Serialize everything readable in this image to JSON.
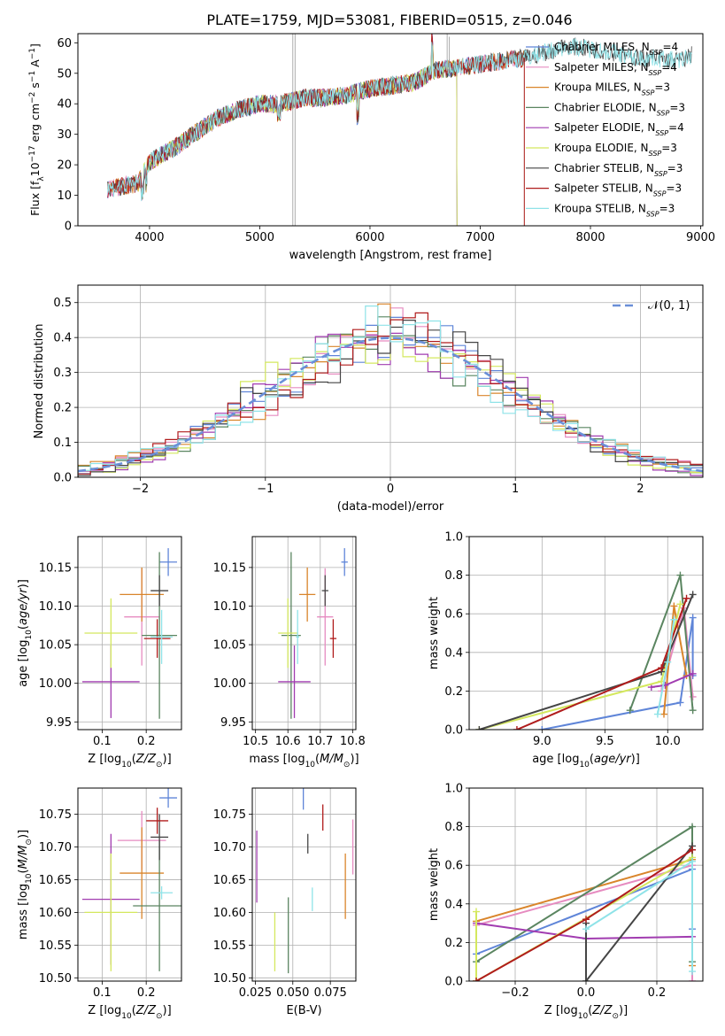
{
  "figure": {
    "suptitle": "PLATE=1759, MJD=53081, FIBERID=0515, z=0.046"
  },
  "series_styles": [
    {
      "name": "Chabrier MILES",
      "nssp": "4",
      "color": "#5f85d8"
    },
    {
      "name": "Salpeter MILES",
      "nssp": "4",
      "color": "#e68bc0"
    },
    {
      "name": "Kroupa MILES",
      "nssp": "3",
      "color": "#d9852b"
    },
    {
      "name": "Chabrier ELODIE",
      "nssp": "3",
      "color": "#5a8560"
    },
    {
      "name": "Salpeter ELODIE",
      "nssp": "4",
      "color": "#a13cb0"
    },
    {
      "name": "Kroupa ELODIE",
      "nssp": "3",
      "color": "#d4e85e"
    },
    {
      "name": "Chabrier STELIB",
      "nssp": "3",
      "color": "#454545"
    },
    {
      "name": "Salpeter STELIB",
      "nssp": "3",
      "color": "#b01c1c"
    },
    {
      "name": "Kroupa STELIB",
      "nssp": "3",
      "color": "#8fe3e8"
    }
  ],
  "chart_data": [
    {
      "id": "spectrum",
      "type": "line",
      "title": "PLATE=1759, MJD=53081, FIBERID=0515, z=0.046",
      "xlabel": "wavelength [Angstrom, rest frame]",
      "ylabel": "Flux [f_λ 10^-17 erg cm^-2 s^-1 A^-1]",
      "xlim": [
        3350,
        9020
      ],
      "ylim": [
        0,
        63
      ],
      "xticks": [
        4000,
        5000,
        6000,
        7000,
        8000,
        9000
      ],
      "yticks": [
        0,
        10,
        20,
        30,
        40,
        50,
        60
      ],
      "legend_position": "top-right",
      "continuum_points": [
        [
          3620,
          12
        ],
        [
          3900,
          14
        ],
        [
          4000,
          21
        ],
        [
          4200,
          25
        ],
        [
          4400,
          30
        ],
        [
          4600,
          35
        ],
        [
          4800,
          38
        ],
        [
          5000,
          40
        ],
        [
          5200,
          40
        ],
        [
          5400,
          42
        ],
        [
          5600,
          42
        ],
        [
          5800,
          43
        ],
        [
          6000,
          45
        ],
        [
          6200,
          46
        ],
        [
          6400,
          47
        ],
        [
          6600,
          51
        ],
        [
          6800,
          52
        ],
        [
          7000,
          53
        ],
        [
          7200,
          54
        ],
        [
          7400,
          55
        ],
        [
          7600,
          57
        ],
        [
          7800,
          59
        ],
        [
          8000,
          58
        ],
        [
          8200,
          57
        ],
        [
          8400,
          55
        ],
        [
          8600,
          55
        ],
        [
          8800,
          54
        ],
        [
          8920,
          56
        ]
      ],
      "series_ranges": [
        {
          "name": "Chabrier MILES",
          "x": [
            3620,
            7400
          ]
        },
        {
          "name": "Salpeter MILES",
          "x": [
            3620,
            7400
          ]
        },
        {
          "name": "Kroupa MILES",
          "x": [
            3620,
            7400
          ]
        },
        {
          "name": "Chabrier ELODIE",
          "x": [
            3900,
            6790
          ]
        },
        {
          "name": "Salpeter ELODIE",
          "x": [
            3900,
            6790
          ]
        },
        {
          "name": "Kroupa ELODIE",
          "x": [
            3900,
            6790
          ]
        },
        {
          "name": "Chabrier STELIB",
          "x": [
            3620,
            8920
          ]
        },
        {
          "name": "Salpeter STELIB",
          "x": [
            3620,
            7400
          ]
        },
        {
          "name": "Kroupa STELIB",
          "x": [
            3620,
            8920
          ]
        }
      ]
    },
    {
      "id": "residuals",
      "type": "histogram",
      "xlabel": "(data-model)/error",
      "ylabel": "Normed distribution",
      "xlim": [
        -2.5,
        2.5
      ],
      "ylim": [
        0,
        0.55
      ],
      "xticks": [
        -2,
        -1,
        0,
        1,
        2
      ],
      "xticklabels": [
        "−2",
        "−1",
        "0",
        "1",
        "2"
      ],
      "yticks": [
        0,
        0.1,
        0.2,
        0.3,
        0.4,
        0.5
      ],
      "yticklabels": [
        "0.0",
        "0.1",
        "0.2",
        "0.3",
        "0.4",
        "0.5"
      ],
      "bin_width": 0.1,
      "legend_label": "𝒩(0, 1)",
      "legend_position": "top-right",
      "reference_curve": "normal(0,1)",
      "bin_heights": [
        0.46,
        0.45,
        0.4,
        0.47,
        0.33,
        0.4,
        0.46,
        0.42,
        0.37,
        0.45,
        0.49,
        0.35,
        0.33,
        0.29
      ]
    },
    {
      "id": "age-vs-Z",
      "type": "errorbar",
      "xlabel": "Z [log10(Z/Z⊙)]",
      "ylabel": "age [log10(age/yr)]",
      "xlim": [
        0.045,
        0.28
      ],
      "ylim": [
        9.94,
        10.19
      ],
      "xticks": [
        0.1,
        0.2
      ],
      "xticklabels": [
        "0.1",
        "0.2"
      ],
      "yticks": [
        9.95,
        10.0,
        10.05,
        10.1,
        10.15
      ],
      "yticklabels": [
        "9.95",
        "10.00",
        "10.05",
        "10.10",
        "10.15"
      ],
      "points": [
        {
          "series": "Chabrier MILES",
          "x": 0.25,
          "y": 10.157,
          "xerr": 0.02,
          "yerr": 0.018
        },
        {
          "series": "Salpeter MILES",
          "x": 0.19,
          "y": 10.086,
          "xerr": 0.04,
          "yerr": 0.063
        },
        {
          "series": "Kroupa MILES",
          "x": 0.19,
          "y": 10.115,
          "xerr": 0.05,
          "yerr": 0.035
        },
        {
          "series": "Chabrier ELODIE",
          "x": 0.23,
          "y": 10.062,
          "xerr": 0.04,
          "yerr": 0.108
        },
        {
          "series": "Salpeter ELODIE",
          "x": 0.12,
          "y": 10.002,
          "xerr": 0.065,
          "yerr": 0.047
        },
        {
          "series": "Kroupa ELODIE",
          "x": 0.12,
          "y": 10.065,
          "xerr": 0.06,
          "yerr": 0.045
        },
        {
          "series": "Chabrier STELIB",
          "x": 0.23,
          "y": 10.12,
          "xerr": 0.02,
          "yerr": 0.02
        },
        {
          "series": "Salpeter STELIB",
          "x": 0.225,
          "y": 10.058,
          "xerr": 0.03,
          "yerr": 0.025
        },
        {
          "series": "Kroupa STELIB",
          "x": 0.235,
          "y": 10.06,
          "xerr": 0.025,
          "yerr": 0.035
        }
      ]
    },
    {
      "id": "age-vs-mass",
      "type": "errorbar",
      "xlabel": "mass [log10(M/M⊙)]",
      "ylabel": "",
      "xlim": [
        10.49,
        10.81
      ],
      "ylim": [
        9.94,
        10.19
      ],
      "xticks": [
        10.5,
        10.6,
        10.7,
        10.8
      ],
      "xticklabels": [
        "10.5",
        "10.6",
        "10.7",
        "10.8"
      ],
      "yticks": [
        9.95,
        10.0,
        10.05,
        10.1,
        10.15
      ],
      "yticklabels": [
        "9.95",
        "10.00",
        "10.05",
        "10.10",
        "10.15"
      ],
      "points": [
        {
          "series": "Chabrier MILES",
          "x": 10.775,
          "y": 10.157,
          "xerr": 0.01,
          "yerr": 0.018
        },
        {
          "series": "Salpeter MILES",
          "x": 10.715,
          "y": 10.086,
          "xerr": 0.025,
          "yerr": 0.063
        },
        {
          "series": "Kroupa MILES",
          "x": 10.66,
          "y": 10.115,
          "xerr": 0.025,
          "yerr": 0.035
        },
        {
          "series": "Chabrier ELODIE",
          "x": 10.61,
          "y": 10.062,
          "xerr": 0.03,
          "yerr": 0.108
        },
        {
          "series": "Salpeter ELODIE",
          "x": 10.62,
          "y": 10.002,
          "xerr": 0.05,
          "yerr": 0.047
        },
        {
          "series": "Kroupa ELODIE",
          "x": 10.6,
          "y": 10.065,
          "xerr": 0.03,
          "yerr": 0.045
        },
        {
          "series": "Chabrier STELIB",
          "x": 10.715,
          "y": 10.12,
          "xerr": 0.01,
          "yerr": 0.02
        },
        {
          "series": "Salpeter STELIB",
          "x": 10.74,
          "y": 10.058,
          "xerr": 0.01,
          "yerr": 0.025
        },
        {
          "series": "Kroupa STELIB",
          "x": 10.63,
          "y": 10.06,
          "xerr": 0.005,
          "yerr": 0.035
        }
      ]
    },
    {
      "id": "weight-vs-age",
      "type": "line",
      "xlabel": "age [log10(age/yr)]",
      "ylabel": "mass weight",
      "xlim": [
        8.42,
        10.28
      ],
      "ylim": [
        0,
        1
      ],
      "xticks": [
        9.0,
        9.5,
        10.0
      ],
      "xticklabels": [
        "9.0",
        "9.5",
        "10.0"
      ],
      "yticks": [
        0,
        0.2,
        0.4,
        0.6,
        0.8,
        1.0
      ],
      "yticklabels": [
        "0.0",
        "0.2",
        "0.4",
        "0.6",
        "0.8",
        "1.0"
      ],
      "series": [
        {
          "name": "Chabrier MILES",
          "x": [
            9.0,
            10.1,
            10.2,
            10.2
          ],
          "y": [
            0.0,
            0.14,
            0.58,
            0.28
          ]
        },
        {
          "name": "Salpeter MILES",
          "x": [
            9.95,
            10.13,
            10.2
          ],
          "y": [
            0.2,
            0.63,
            0.17
          ]
        },
        {
          "name": "Kroupa MILES",
          "x": [
            9.97,
            10.05,
            10.15
          ],
          "y": [
            0.08,
            0.64,
            0.28
          ]
        },
        {
          "name": "Chabrier ELODIE",
          "x": [
            9.7,
            10.1,
            10.2
          ],
          "y": [
            0.1,
            0.8,
            0.1
          ]
        },
        {
          "name": "Salpeter ELODIE",
          "x": [
            9.87,
            9.98,
            10.2
          ],
          "y": [
            0.22,
            0.23,
            0.29
          ]
        },
        {
          "name": "Kroupa ELODIE",
          "x": [
            8.5,
            9.95,
            10.1
          ],
          "y": [
            0.0,
            0.25,
            0.65
          ]
        },
        {
          "name": "Chabrier STELIB",
          "x": [
            8.5,
            9.95,
            10.2
          ],
          "y": [
            0.0,
            0.3,
            0.7
          ]
        },
        {
          "name": "Salpeter STELIB",
          "x": [
            8.8,
            9.95,
            10.15
          ],
          "y": [
            0.0,
            0.32,
            0.68
          ]
        },
        {
          "name": "Kroupa STELIB",
          "x": [
            9.92,
            10.0,
            10.05
          ],
          "y": [
            0.08,
            0.35,
            0.57
          ]
        }
      ]
    },
    {
      "id": "mass-vs-Z",
      "type": "errorbar",
      "xlabel": "Z [log10(Z/Z⊙)]",
      "ylabel": "mass [log10(M/M⊙)]",
      "xlim": [
        0.045,
        0.28
      ],
      "ylim": [
        10.495,
        10.79
      ],
      "xticks": [
        0.1,
        0.2
      ],
      "xticklabels": [
        "0.1",
        "0.2"
      ],
      "yticks": [
        10.5,
        10.55,
        10.6,
        10.65,
        10.7,
        10.75
      ],
      "yticklabels": [
        "10.50",
        "10.55",
        "10.60",
        "10.65",
        "10.70",
        "10.75"
      ],
      "points": [
        {
          "series": "Chabrier MILES",
          "x": 0.25,
          "y": 10.775,
          "xerr": 0.02,
          "yerr": 0.015
        },
        {
          "series": "Salpeter MILES",
          "x": 0.19,
          "y": 10.71,
          "xerr": 0.055,
          "yerr": 0.045
        },
        {
          "series": "Kroupa MILES",
          "x": 0.19,
          "y": 10.66,
          "xerr": 0.05,
          "yerr": 0.07
        },
        {
          "series": "Chabrier ELODIE",
          "x": 0.23,
          "y": 10.61,
          "xerr": 0.06,
          "yerr": 0.1
        },
        {
          "series": "Salpeter ELODIE",
          "x": 0.12,
          "y": 10.62,
          "xerr": 0.065,
          "yerr": 0.1
        },
        {
          "series": "Kroupa ELODIE",
          "x": 0.12,
          "y": 10.6,
          "xerr": 0.06,
          "yerr": 0.09
        },
        {
          "series": "Chabrier STELIB",
          "x": 0.23,
          "y": 10.715,
          "xerr": 0.02,
          "yerr": 0.035
        },
        {
          "series": "Salpeter STELIB",
          "x": 0.225,
          "y": 10.74,
          "xerr": 0.025,
          "yerr": 0.02
        },
        {
          "series": "Kroupa STELIB",
          "x": 0.235,
          "y": 10.63,
          "xerr": 0.025,
          "yerr": 0.01
        }
      ]
    },
    {
      "id": "mass-vs-ebv",
      "type": "errorbar",
      "xlabel": "E(B-V)",
      "ylabel": "",
      "xlim": [
        0.023,
        0.092
      ],
      "ylim": [
        10.495,
        10.79
      ],
      "xticks": [
        0.025,
        0.05,
        0.075
      ],
      "xticklabels": [
        "0.025",
        "0.050",
        "0.075"
      ],
      "yticks": [
        10.5,
        10.55,
        10.6,
        10.65,
        10.7,
        10.75
      ],
      "yticklabels": [
        "10.50",
        "10.55",
        "10.60",
        "10.65",
        "10.70",
        "10.75"
      ],
      "points": [
        {
          "series": "Chabrier MILES",
          "x": 0.057,
          "y": 10.775,
          "xerr": 0.0,
          "yerr": 0.018
        },
        {
          "series": "Salpeter MILES",
          "x": 0.09,
          "y": 10.7,
          "xerr": 0.0,
          "yerr": 0.042
        },
        {
          "series": "Kroupa MILES",
          "x": 0.085,
          "y": 10.64,
          "xerr": 0.0,
          "yerr": 0.05
        },
        {
          "series": "Chabrier ELODIE",
          "x": 0.047,
          "y": 10.565,
          "xerr": 0.0,
          "yerr": 0.058
        },
        {
          "series": "Salpeter ELODIE",
          "x": 0.026,
          "y": 10.67,
          "xerr": 0.0,
          "yerr": 0.055
        },
        {
          "series": "Kroupa ELODIE",
          "x": 0.038,
          "y": 10.555,
          "xerr": 0.0,
          "yerr": 0.045
        },
        {
          "series": "Chabrier STELIB",
          "x": 0.06,
          "y": 10.705,
          "xerr": 0.0,
          "yerr": 0.015
        },
        {
          "series": "Salpeter STELIB",
          "x": 0.07,
          "y": 10.745,
          "xerr": 0.0,
          "yerr": 0.02
        },
        {
          "series": "Kroupa STELIB",
          "x": 0.063,
          "y": 10.62,
          "xerr": 0.0,
          "yerr": 0.018
        }
      ]
    },
    {
      "id": "weight-vs-Z",
      "type": "line",
      "xlabel": "Z [log10(Z/Z⊙)]",
      "ylabel": "mass weight",
      "xlim": [
        -0.33,
        0.33
      ],
      "ylim": [
        0,
        1
      ],
      "xticks": [
        -0.2,
        0.0,
        0.2
      ],
      "xticklabels": [
        "−0.2",
        "0.0",
        "0.2"
      ],
      "yticks": [
        0,
        0.2,
        0.4,
        0.6,
        0.8,
        1.0
      ],
      "yticklabels": [
        "0.0",
        "0.2",
        "0.4",
        "0.6",
        "0.8",
        "1.0"
      ],
      "series": [
        {
          "name": "Chabrier MILES",
          "x": [
            -0.31,
            0.3,
            0.3
          ],
          "y": [
            0.14,
            0.58,
            0.27
          ]
        },
        {
          "name": "Salpeter MILES",
          "x": [
            -0.31,
            0.3,
            0.3
          ],
          "y": [
            0.29,
            0.6,
            0.0
          ]
        },
        {
          "name": "Kroupa MILES",
          "x": [
            -0.31,
            0.3,
            0.3
          ],
          "y": [
            0.31,
            0.63,
            0.08
          ]
        },
        {
          "name": "Chabrier ELODIE",
          "x": [
            -0.31,
            0.3,
            0.3
          ],
          "y": [
            0.1,
            0.8,
            0.1
          ]
        },
        {
          "name": "Salpeter ELODIE",
          "x": [
            -0.31,
            0.0,
            0.3
          ],
          "y": [
            0.3,
            0.22,
            0.23
          ]
        },
        {
          "name": "Kroupa ELODIE",
          "x": [
            -0.31,
            -0.31,
            0.3
          ],
          "y": [
            0.36,
            0.0,
            0.64
          ]
        },
        {
          "name": "Chabrier STELIB",
          "x": [
            0.0,
            0.0,
            0.3
          ],
          "y": [
            0.3,
            0.0,
            0.7
          ]
        },
        {
          "name": "Salpeter STELIB",
          "x": [
            -0.31,
            0.0,
            0.3
          ],
          "y": [
            0.0,
            0.32,
            0.68
          ]
        },
        {
          "name": "Kroupa STELIB",
          "x": [
            0.0,
            0.3,
            0.3
          ],
          "y": [
            0.27,
            0.62,
            0.05
          ]
        }
      ]
    }
  ]
}
